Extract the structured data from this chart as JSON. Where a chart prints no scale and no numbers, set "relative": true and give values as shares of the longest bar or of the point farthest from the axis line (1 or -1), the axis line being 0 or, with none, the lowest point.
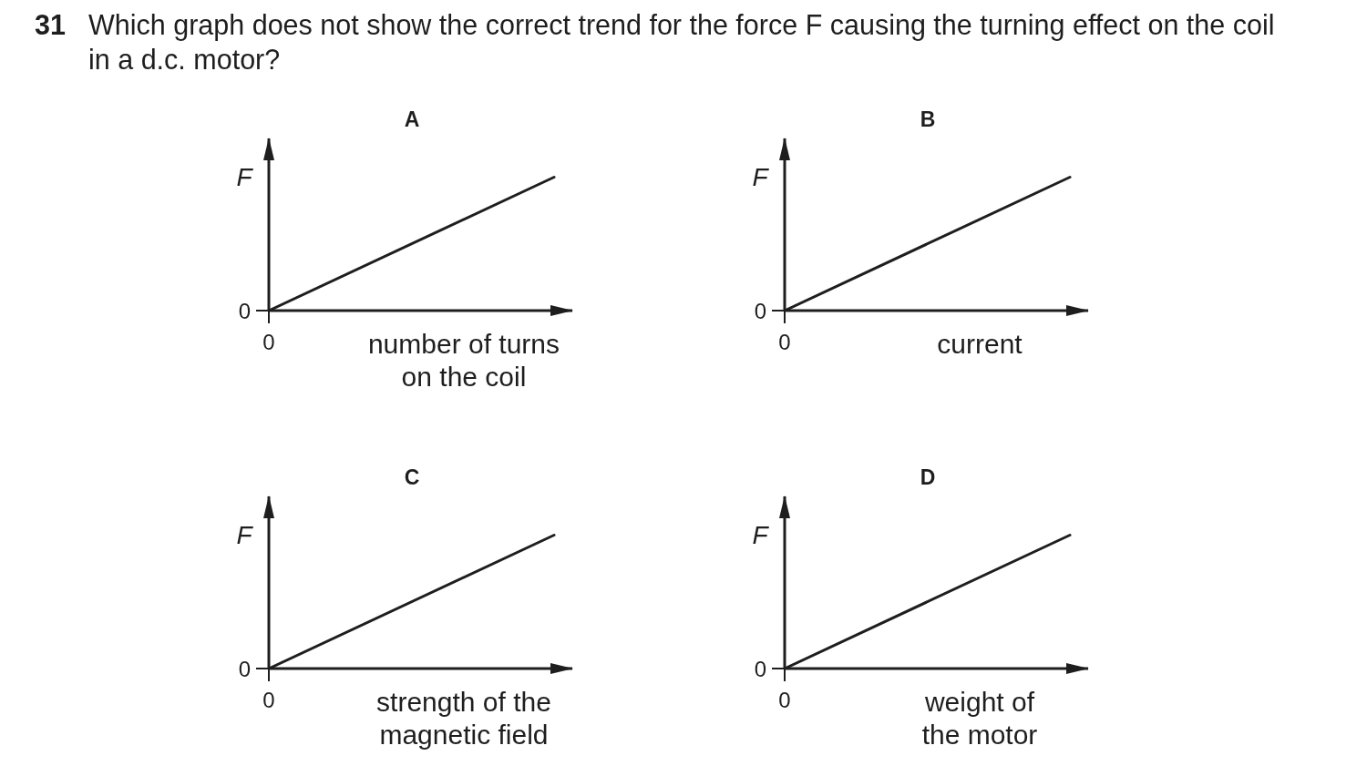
{
  "chart_data": [
    {
      "type": "other",
      "title": "31 Which graph does not show the correct trend for the force F causing the turning effect on the coil in a d.c. motor?"
    },
    {
      "type": "line",
      "title": "A",
      "xlabel": "number of turns on the coil",
      "ylabel": "F",
      "relative": true,
      "categories": [
        null,
        null
      ],
      "values": [
        0,
        1
      ],
      "color": "#1e1e1e",
      "annotations": [
        "0",
        "0"
      ]
    },
    {
      "type": "line",
      "title": "B",
      "xlabel": "current",
      "ylabel": "F",
      "relative": true,
      "categories": [
        null,
        null
      ],
      "values": [
        0,
        1
      ],
      "color": "#1e1e1e",
      "annotations": [
        "0",
        "0"
      ]
    },
    {
      "type": "line",
      "title": "C",
      "xlabel": "strength of the magnetic field",
      "ylabel": "F",
      "relative": true,
      "categories": [
        null,
        null
      ],
      "values": [
        0,
        1
      ],
      "color": "#1e1e1e",
      "annotations": [
        "0",
        "0"
      ]
    },
    {
      "type": "line",
      "title": "D",
      "xlabel": "weight of the motor",
      "ylabel": "F",
      "relative": true,
      "categories": [
        null,
        null
      ],
      "values": [
        0,
        1
      ],
      "color": "#1e1e1e",
      "annotations": [
        "0",
        "0"
      ]
    }
  ]
}
